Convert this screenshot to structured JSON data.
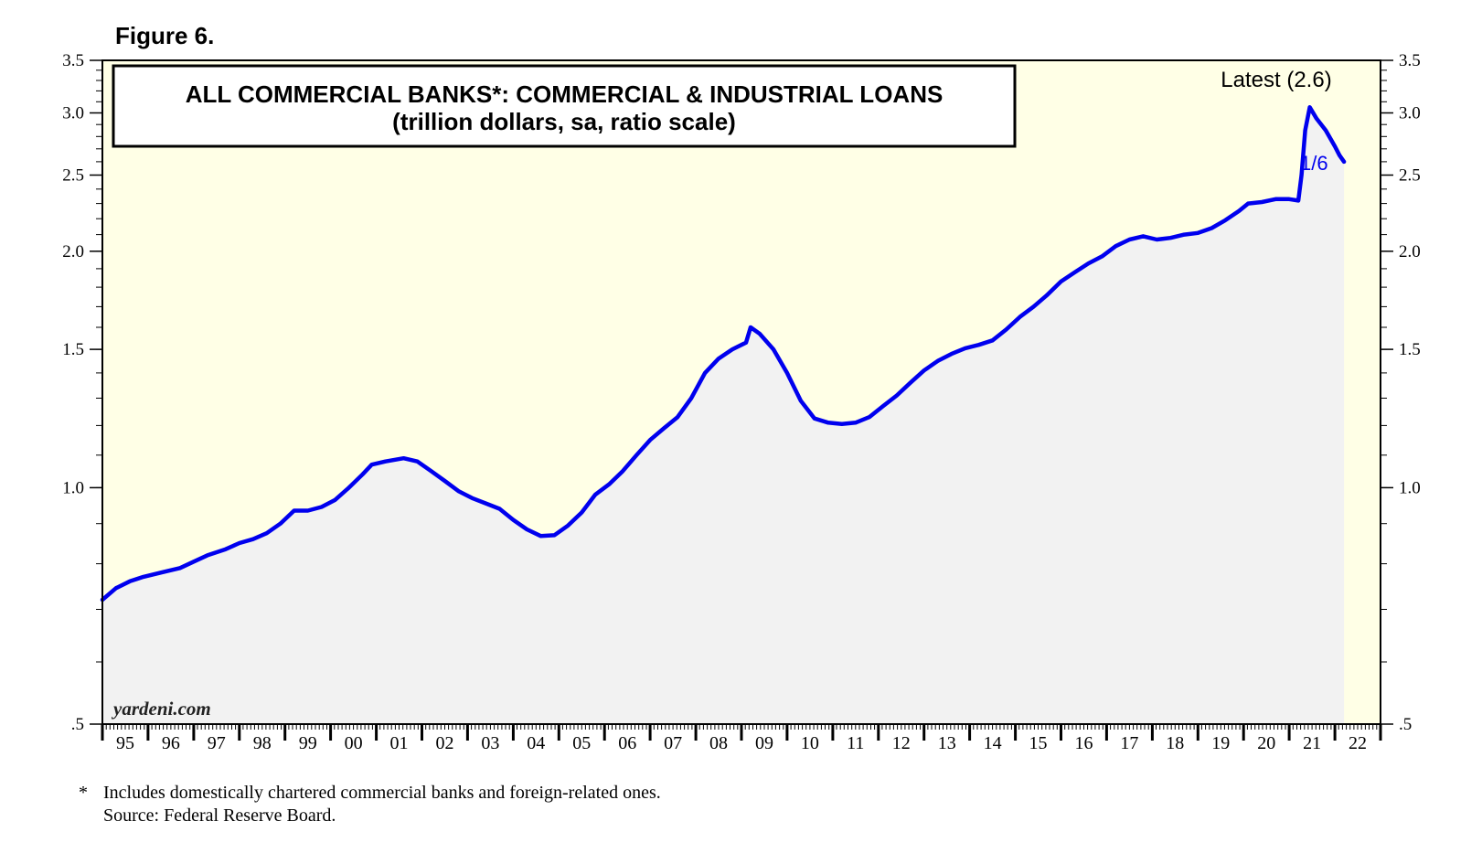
{
  "figure_label": "Figure 6.",
  "footnote": {
    "marker": "*",
    "text": "Includes domestically chartered commercial banks and foreign-related ones.",
    "source": "Source: Federal Reserve Board."
  },
  "watermark": "yardeni.com",
  "colors": {
    "background": "#ffffe6",
    "area": "#f2f2f2",
    "line": "#0000ee"
  },
  "chart_data": {
    "type": "line",
    "title": "ALL COMMERCIAL BANKS*: COMMERCIAL & INDUSTRIAL LOANS",
    "subtitle": "(trillion dollars, sa, ratio scale)",
    "y_scale": "log",
    "ylim": [
      0.5,
      3.5
    ],
    "y_ticks": [
      {
        "value": 0.5,
        "label": ".5"
      },
      {
        "value": 1.0,
        "label": "1.0"
      },
      {
        "value": 1.5,
        "label": "1.5"
      },
      {
        "value": 2.0,
        "label": "2.0"
      },
      {
        "value": 2.5,
        "label": "2.5"
      },
      {
        "value": 3.0,
        "label": "3.0"
      },
      {
        "value": 3.5,
        "label": "3.5"
      }
    ],
    "x_range": [
      1995,
      2023
    ],
    "x_tick_labels": [
      "95",
      "96",
      "97",
      "98",
      "99",
      "00",
      "01",
      "02",
      "03",
      "04",
      "05",
      "06",
      "07",
      "08",
      "09",
      "10",
      "11",
      "12",
      "13",
      "14",
      "15",
      "16",
      "17",
      "18",
      "19",
      "20",
      "21",
      "22"
    ],
    "latest_label": "Latest (2.6)",
    "last_point_label": "1/6",
    "grid": false,
    "series": [
      {
        "fill_area": true,
        "points": [
          [
            1995.0,
            0.72
          ],
          [
            1995.3,
            0.745
          ],
          [
            1995.6,
            0.76
          ],
          [
            1995.9,
            0.77
          ],
          [
            1996.3,
            0.78
          ],
          [
            1996.7,
            0.79
          ],
          [
            1997.0,
            0.805
          ],
          [
            1997.3,
            0.82
          ],
          [
            1997.7,
            0.835
          ],
          [
            1998.0,
            0.85
          ],
          [
            1998.3,
            0.86
          ],
          [
            1998.6,
            0.875
          ],
          [
            1998.9,
            0.9
          ],
          [
            1999.2,
            0.935
          ],
          [
            1999.5,
            0.935
          ],
          [
            1999.8,
            0.945
          ],
          [
            2000.1,
            0.965
          ],
          [
            2000.4,
            1.0
          ],
          [
            2000.7,
            1.04
          ],
          [
            2000.9,
            1.07
          ],
          [
            2001.2,
            1.08
          ],
          [
            2001.6,
            1.09
          ],
          [
            2001.9,
            1.08
          ],
          [
            2002.2,
            1.05
          ],
          [
            2002.5,
            1.02
          ],
          [
            2002.8,
            0.99
          ],
          [
            2003.1,
            0.97
          ],
          [
            2003.4,
            0.955
          ],
          [
            2003.7,
            0.94
          ],
          [
            2004.0,
            0.91
          ],
          [
            2004.3,
            0.885
          ],
          [
            2004.6,
            0.868
          ],
          [
            2004.9,
            0.87
          ],
          [
            2005.2,
            0.895
          ],
          [
            2005.5,
            0.93
          ],
          [
            2005.8,
            0.98
          ],
          [
            2006.1,
            1.01
          ],
          [
            2006.4,
            1.05
          ],
          [
            2006.7,
            1.1
          ],
          [
            2007.0,
            1.15
          ],
          [
            2007.3,
            1.19
          ],
          [
            2007.6,
            1.23
          ],
          [
            2007.9,
            1.3
          ],
          [
            2008.2,
            1.4
          ],
          [
            2008.5,
            1.46
          ],
          [
            2008.8,
            1.5
          ],
          [
            2009.1,
            1.53
          ],
          [
            2009.2,
            1.6
          ],
          [
            2009.4,
            1.57
          ],
          [
            2009.7,
            1.5
          ],
          [
            2010.0,
            1.4
          ],
          [
            2010.3,
            1.29
          ],
          [
            2010.6,
            1.225
          ],
          [
            2010.9,
            1.21
          ],
          [
            2011.2,
            1.205
          ],
          [
            2011.5,
            1.21
          ],
          [
            2011.8,
            1.23
          ],
          [
            2012.1,
            1.27
          ],
          [
            2012.4,
            1.31
          ],
          [
            2012.7,
            1.36
          ],
          [
            2013.0,
            1.41
          ],
          [
            2013.3,
            1.45
          ],
          [
            2013.6,
            1.48
          ],
          [
            2013.9,
            1.505
          ],
          [
            2014.2,
            1.52
          ],
          [
            2014.5,
            1.54
          ],
          [
            2014.8,
            1.59
          ],
          [
            2015.1,
            1.65
          ],
          [
            2015.4,
            1.7
          ],
          [
            2015.7,
            1.76
          ],
          [
            2016.0,
            1.83
          ],
          [
            2016.3,
            1.88
          ],
          [
            2016.6,
            1.93
          ],
          [
            2016.9,
            1.97
          ],
          [
            2017.2,
            2.03
          ],
          [
            2017.5,
            2.07
          ],
          [
            2017.8,
            2.09
          ],
          [
            2018.1,
            2.07
          ],
          [
            2018.4,
            2.08
          ],
          [
            2018.7,
            2.1
          ],
          [
            2019.0,
            2.11
          ],
          [
            2019.3,
            2.14
          ],
          [
            2019.6,
            2.19
          ],
          [
            2019.9,
            2.25
          ],
          [
            2020.1,
            2.3
          ],
          [
            2020.4,
            2.31
          ],
          [
            2020.7,
            2.33
          ],
          [
            2021.0,
            2.33
          ],
          [
            2021.2,
            2.32
          ],
          [
            2021.27,
            2.5
          ],
          [
            2021.35,
            2.85
          ],
          [
            2021.45,
            3.05
          ],
          [
            2021.6,
            2.95
          ],
          [
            2021.8,
            2.85
          ],
          [
            2022.0,
            2.72
          ],
          [
            2022.1,
            2.65
          ],
          [
            2022.2,
            2.6
          ]
        ]
      }
    ]
  }
}
